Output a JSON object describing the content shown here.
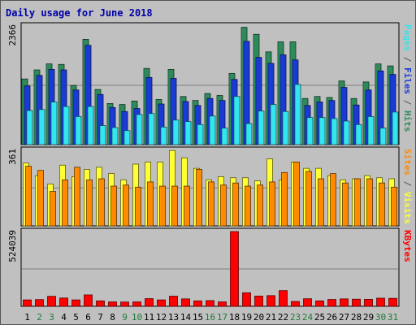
{
  "chart_data": {
    "type": "bar",
    "title": "Daily usage for June 2018",
    "days": [
      "1",
      "2",
      "3",
      "4",
      "5",
      "6",
      "7",
      "8",
      "9",
      "10",
      "11",
      "12",
      "13",
      "14",
      "15",
      "16",
      "17",
      "18",
      "19",
      "20",
      "21",
      "22",
      "23",
      "24",
      "25",
      "26",
      "27",
      "28",
      "29",
      "30",
      "31"
    ],
    "weekend_days": [
      "2",
      "3",
      "9",
      "10",
      "16",
      "17",
      "23",
      "24",
      "30",
      "31"
    ],
    "colors": {
      "hits": "#2e8a5a",
      "files": "#1a3ad6",
      "pages": "#33e5ee",
      "visits": "#ffff33",
      "sites": "#ff8a00",
      "kbytes": "#ff0000",
      "weekday_label": "#000000",
      "weekend_label": "#1f7a3a",
      "title": "#0000aa"
    },
    "panels": [
      {
        "id": "hits-files-pages",
        "max_label": "2366",
        "max_value": 2366,
        "gridlines": [
          1183
        ],
        "right_labels": [
          {
            "text": "Pages",
            "color": "#33e5ee"
          },
          {
            "text": " / ",
            "color": "#555555"
          },
          {
            "text": "Files",
            "color": "#1a3ad6"
          },
          {
            "text": " / ",
            "color": "#555555"
          },
          {
            "text": "Hits",
            "color": "#2e8a5a"
          }
        ],
        "series": [
          {
            "key": "hits",
            "values": [
              1310,
              1490,
              1610,
              1600,
              1180,
              2100,
              1100,
              820,
              800,
              870,
              1520,
              900,
              1500,
              960,
              880,
              1020,
              980,
              1420,
              2340,
              2200,
              1850,
              2050,
              2050,
              920,
              960,
              940,
              1270,
              920,
              1250,
              1610,
              1570
            ]
          },
          {
            "key": "files",
            "values": [
              1170,
              1380,
              1500,
              1490,
              1090,
              1980,
              1000,
              740,
              660,
              720,
              1340,
              810,
              1320,
              860,
              780,
              920,
              880,
              1300,
              2060,
              1740,
              1620,
              1790,
              1690,
              780,
              850,
              880,
              1140,
              790,
              1090,
              1470,
              1400
            ]
          },
          {
            "key": "pages",
            "values": [
              680,
              700,
              850,
              760,
              560,
              760,
              380,
              340,
              280,
              600,
              620,
              350,
              490,
              460,
              400,
              570,
              330,
              960,
              420,
              670,
              800,
              660,
              1200,
              540,
              540,
              520,
              470,
              400,
              560,
              330,
              650
            ]
          }
        ]
      },
      {
        "id": "visits-sites",
        "max_label": "361",
        "max_value": 361,
        "gridlines": [
          181
        ],
        "right_labels": [
          {
            "text": "Sites",
            "color": "#ff8a00"
          },
          {
            "text": " / ",
            "color": "#555555"
          },
          {
            "text": "Visits",
            "color": "#ffff33"
          }
        ],
        "series": [
          {
            "key": "visits",
            "values": [
              300,
              240,
              200,
              290,
              235,
              270,
              280,
              250,
              220,
              295,
              305,
              305,
              360,
              325,
              275,
              220,
              235,
              230,
              230,
              215,
              320,
              220,
              305,
              275,
              275,
              240,
              220,
              225,
              240,
              230,
              225
            ]
          },
          {
            "key": "sites",
            "values": [
              285,
              265,
              165,
              220,
              280,
              220,
              225,
              190,
              195,
              185,
              210,
              190,
              190,
              190,
              270,
              210,
              195,
              205,
              190,
              195,
              210,
              255,
              305,
              260,
              225,
              250,
              205,
              225,
              225,
              205,
              185
            ]
          }
        ]
      },
      {
        "id": "kbytes",
        "max_label": "524039",
        "max_value": 524039,
        "gridlines": [
          262019
        ],
        "right_labels": [
          {
            "text": "KBytes",
            "color": "#ff0000"
          }
        ],
        "series": [
          {
            "key": "kbytes",
            "values": [
              45000,
              47000,
              70000,
              58000,
              45000,
              80000,
              38000,
              31000,
              30000,
              31000,
              54000,
              45000,
              71000,
              52000,
              38000,
              40000,
              31000,
              524039,
              95000,
              72000,
              75000,
              110000,
              34000,
              53000,
              38000,
              48000,
              52000,
              50000,
              49000,
              57000,
              56000
            ]
          }
        ]
      }
    ]
  }
}
